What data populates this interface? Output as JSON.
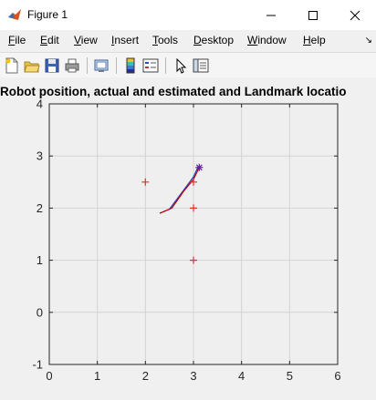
{
  "window": {
    "title": "Figure 1",
    "controls": [
      "minimize",
      "maximize",
      "close"
    ]
  },
  "menubar": {
    "items": [
      "File",
      "Edit",
      "View",
      "Insert",
      "Tools",
      "Desktop",
      "Window",
      "Help"
    ]
  },
  "toolbar": {
    "icons": [
      "new-figure-icon",
      "open-file-icon",
      "save-icon",
      "print-icon",
      "link-plot-icon",
      "insert-colorbar-icon",
      "insert-legend-icon",
      "pointer-icon",
      "property-editor-icon"
    ]
  },
  "plot": {
    "title": "Robot position, actual and estimated and Landmark locatio"
  },
  "chart_data": {
    "type": "line",
    "title": "Robot position, actual and estimated and Landmark locatio",
    "xlabel": "",
    "ylabel": "",
    "xlim": [
      0,
      6
    ],
    "ylim": [
      -1,
      4
    ],
    "xticks": [
      "0",
      "1",
      "2",
      "3",
      "4",
      "5",
      "6"
    ],
    "yticks": [
      "-1",
      "0",
      "1",
      "2",
      "3",
      "4"
    ],
    "grid": true,
    "series": [
      {
        "kind": "line",
        "color": "#1f3fbf",
        "points": [
          [
            2.3,
            1.9
          ],
          [
            2.5,
            1.98
          ],
          [
            2.8,
            2.35
          ],
          [
            3.0,
            2.6
          ],
          [
            3.1,
            2.8
          ]
        ]
      },
      {
        "kind": "line",
        "color": "#c00000",
        "points": [
          [
            2.3,
            1.9
          ],
          [
            2.55,
            2.0
          ],
          [
            2.8,
            2.33
          ],
          [
            3.0,
            2.55
          ],
          [
            3.12,
            2.78
          ]
        ]
      },
      {
        "kind": "markers",
        "marker": "+",
        "color": "#e03030",
        "points": [
          [
            2,
            2.5
          ],
          [
            3,
            2.5
          ],
          [
            3,
            2
          ],
          [
            3,
            1
          ]
        ]
      },
      {
        "kind": "markers",
        "marker": "*",
        "color": "#6a1fa0",
        "points": [
          [
            3.12,
            2.78
          ]
        ]
      }
    ]
  },
  "colors": {
    "axes_bg": "#efefef",
    "grid": "#d4d4d4",
    "axis": "#262626"
  }
}
